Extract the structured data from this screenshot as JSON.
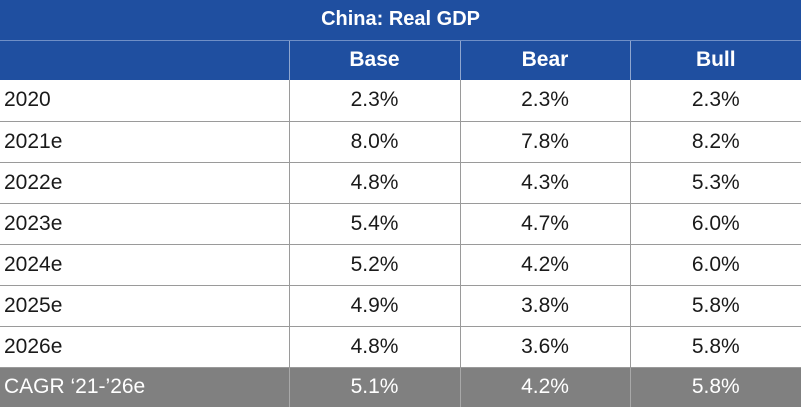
{
  "chart_data": {
    "type": "table",
    "title": "China: Real GDP",
    "columns": [
      "",
      "Base",
      "Bear",
      "Bull"
    ],
    "rows": [
      {
        "label": "2020",
        "values": [
          "2.3%",
          "2.3%",
          "2.3%"
        ]
      },
      {
        "label": "2021e",
        "values": [
          "8.0%",
          "7.8%",
          "8.2%"
        ]
      },
      {
        "label": "2022e",
        "values": [
          "4.8%",
          "4.3%",
          "5.3%"
        ]
      },
      {
        "label": "2023e",
        "values": [
          "5.4%",
          "4.7%",
          "6.0%"
        ]
      },
      {
        "label": "2024e",
        "values": [
          "5.2%",
          "4.2%",
          "6.0%"
        ]
      },
      {
        "label": "2025e",
        "values": [
          "4.9%",
          "3.8%",
          "5.8%"
        ]
      },
      {
        "label": "2026e",
        "values": [
          "4.8%",
          "3.6%",
          "5.8%"
        ]
      }
    ],
    "summary_row": {
      "label": "CAGR ‘21-’26e",
      "values": [
        "5.1%",
        "4.2%",
        "5.8%"
      ]
    },
    "colors": {
      "header": "#1f4fa0",
      "summary": "#808080"
    }
  }
}
